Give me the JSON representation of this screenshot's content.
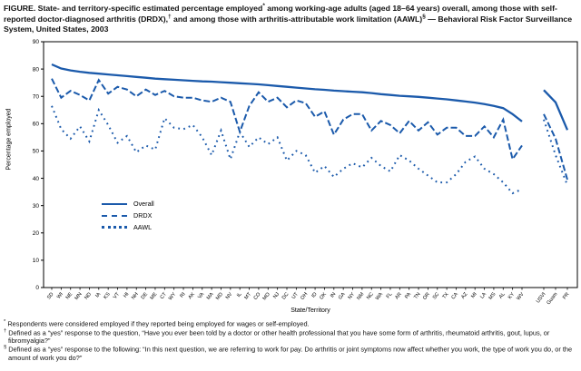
{
  "figure": {
    "title_segments": [
      {
        "text": "FIGURE. State- and territory-specific estimated percentage employed"
      },
      {
        "text": "*",
        "sup": true
      },
      {
        "text": " among working-age adults (aged 18–64 years) overall, among those with self-reported doctor-diagnosed arthritis (DRDX),"
      },
      {
        "text": "†",
        "sup": true
      },
      {
        "text": " and among those with arthritis-attributable work limitation (AAWL)"
      },
      {
        "text": "§",
        "sup": true
      },
      {
        "text": " — Behavioral Risk Factor Surveillance System, United States, 2003"
      }
    ],
    "footnotes": [
      {
        "marker": "*",
        "text": "Respondents were considered employed if they reported being employed for wages or self-employed."
      },
      {
        "marker": "†",
        "text": "Defined as a “yes” response to the question, “Have you ever been told by a doctor or other health professional that you have some form of arthritis, rheumatoid arthritis, gout, lupus, or fibromyalgia?”"
      },
      {
        "marker": "§",
        "text": "Defined as a “yes” response to the following: “In this next question, we are referring to work for pay. Do arthritis or joint symptoms now affect whether you work, the type of work you do, or the amount of work you do?”"
      }
    ]
  },
  "chart_data": {
    "type": "line",
    "title": "",
    "xlabel": "State/Territory",
    "ylabel": "Percentage employed",
    "ylim": [
      0,
      90
    ],
    "yticks": [
      0,
      10,
      20,
      30,
      40,
      50,
      60,
      70,
      80,
      90
    ],
    "grid": false,
    "legend_position": "inside-left",
    "line_color": "#1b5aab",
    "gap_after_index": 50,
    "categories": [
      "SD",
      "WI",
      "NE",
      "MN",
      "ND",
      "IA",
      "KS",
      "VT",
      "HI",
      "NH",
      "DE",
      "ME",
      "CT",
      "WY",
      "RI",
      "AK",
      "VA",
      "MA",
      "MD",
      "NV",
      "IL",
      "MT",
      "CO",
      "MO",
      "NJ",
      "DC",
      "UT",
      "OH",
      "ID",
      "OK",
      "IN",
      "GA",
      "NY",
      "NM",
      "NC",
      "WA",
      "FL",
      "AR",
      "PA",
      "TN",
      "OR",
      "SC",
      "TX",
      "CA",
      "AZ",
      "MI",
      "LA",
      "MS",
      "AL",
      "KY",
      "WV",
      "USVI",
      "Guam",
      "PR"
    ],
    "series": [
      {
        "name": "Overall",
        "style": "solid",
        "values": [
          81.7,
          80.2,
          79.5,
          79.0,
          78.6,
          78.3,
          78.0,
          77.7,
          77.4,
          77.1,
          76.8,
          76.5,
          76.3,
          76.1,
          75.9,
          75.7,
          75.5,
          75.4,
          75.2,
          75.0,
          74.8,
          74.6,
          74.4,
          74.1,
          73.8,
          73.5,
          73.2,
          72.9,
          72.6,
          72.4,
          72.1,
          71.9,
          71.7,
          71.5,
          71.2,
          70.8,
          70.5,
          70.2,
          70.0,
          69.8,
          69.5,
          69.2,
          68.9,
          68.5,
          68.1,
          67.7,
          67.2,
          66.5,
          65.7,
          63.5,
          60.8,
          72.3,
          67.8,
          57.7
        ]
      },
      {
        "name": "DRDX",
        "style": "dashed",
        "values": [
          76.5,
          69.5,
          72.0,
          70.5,
          68.5,
          76.0,
          71.0,
          73.5,
          72.5,
          70.0,
          72.5,
          70.5,
          72.0,
          70.0,
          69.5,
          69.5,
          68.5,
          68.0,
          69.5,
          68.0,
          57.0,
          66.5,
          71.5,
          68.0,
          69.5,
          66.0,
          68.5,
          67.5,
          62.5,
          64.5,
          56.0,
          61.5,
          63.5,
          63.5,
          57.5,
          61.0,
          59.5,
          56.5,
          61.0,
          57.5,
          60.5,
          56.0,
          58.5,
          58.5,
          55.5,
          55.5,
          59.0,
          55.0,
          61.5,
          47.0,
          52.0,
          63.5,
          54.5,
          39.5
        ]
      },
      {
        "name": "AAWL",
        "style": "dotted",
        "values": [
          66.5,
          58.0,
          54.5,
          59.0,
          53.5,
          65.0,
          59.5,
          53.0,
          55.5,
          49.5,
          52.0,
          50.5,
          62.0,
          58.5,
          58.0,
          59.5,
          55.0,
          48.5,
          57.5,
          47.0,
          57.0,
          51.5,
          55.0,
          52.5,
          55.0,
          46.5,
          50.0,
          48.5,
          42.0,
          44.5,
          40.5,
          43.5,
          45.5,
          44.0,
          47.5,
          44.5,
          42.5,
          48.5,
          46.5,
          43.5,
          41.0,
          38.5,
          38.5,
          41.5,
          46.0,
          48.0,
          43.5,
          41.5,
          38.5,
          34.5,
          36.0,
          61.5,
          48.5,
          37.5
        ]
      }
    ]
  }
}
